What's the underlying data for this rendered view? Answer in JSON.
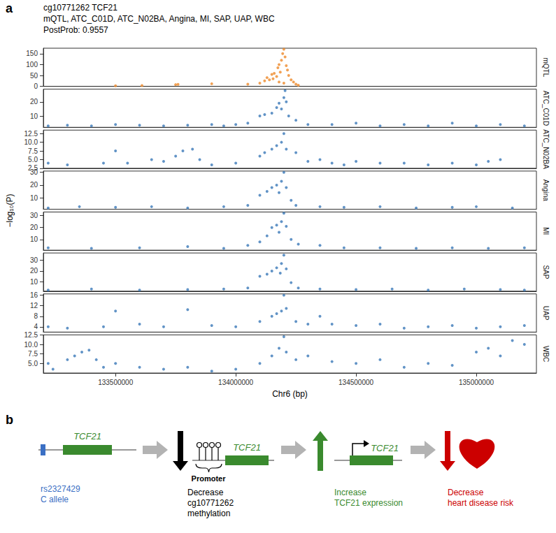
{
  "figure": {
    "panel_label": "a",
    "title": "cg10771262 TCF21",
    "subtitle": "mQTL, ATC_C01D, ATC_N02BA, Angina, MI, SAP, UAP, WBC",
    "caption": "PostProb: 0.9557",
    "y_label": "−log₁₀(P)"
  },
  "chart_data": [
    {
      "type": "scatter",
      "title": "mQTL",
      "color": "#ee8a2a",
      "grid": false,
      "tick_labels": "y",
      "xlim": [
        133200000,
        135250000
      ],
      "xticks": [
        133500000,
        134000000,
        134500000,
        135000000
      ],
      "ylim": [
        0,
        175
      ],
      "yticks": [
        0,
        50,
        100,
        150
      ],
      "x": [
        133500000,
        133610000,
        133750000,
        133760000,
        133900000,
        134050000,
        134100000,
        134120000,
        134130000,
        134140000,
        134150000,
        134155000,
        134160000,
        134170000,
        134175000,
        134180000,
        134180000,
        134185000,
        134190000,
        134195000,
        134200000,
        134200000,
        134205000,
        134210000,
        134215000,
        134220000,
        134230000,
        134240000,
        134250000,
        134260000
      ],
      "values": [
        3,
        4,
        8,
        9,
        12,
        10,
        15,
        25,
        40,
        30,
        55,
        35,
        60,
        45,
        85,
        100,
        20,
        65,
        120,
        150,
        170,
        15,
        135,
        95,
        75,
        50,
        30,
        20,
        10,
        5
      ]
    },
    {
      "type": "scatter",
      "title": "ATC_C01D",
      "color": "#3a78b8",
      "grid": false,
      "tick_labels": "y",
      "xlim": [
        133200000,
        135250000
      ],
      "xticks": [
        133500000,
        134000000,
        134500000,
        135000000
      ],
      "ylim": [
        2,
        29
      ],
      "yticks": [
        10,
        20
      ],
      "x": [
        133220000,
        133300000,
        133400000,
        133500000,
        133600000,
        133700000,
        133800000,
        133900000,
        133950000,
        134000000,
        134050000,
        134100000,
        134120000,
        134150000,
        134170000,
        134180000,
        134190000,
        134200000,
        134205000,
        134210000,
        134220000,
        134250000,
        134300000,
        134400000,
        134500000,
        134600000,
        134700000,
        134800000,
        134900000,
        135000000,
        135100000,
        135200000
      ],
      "values": [
        3,
        3.5,
        3,
        4,
        3.5,
        3,
        3.5,
        4,
        3,
        4,
        5,
        10,
        11,
        12,
        16,
        19,
        15,
        23,
        28,
        20,
        10,
        7,
        4,
        4,
        5,
        3,
        4,
        3,
        5,
        3,
        4,
        3
      ]
    },
    {
      "type": "scatter",
      "title": "ATC_N02BA",
      "color": "#3a78b8",
      "grid": false,
      "tick_labels": "y",
      "xlim": [
        133200000,
        135250000
      ],
      "xticks": [
        133500000,
        134000000,
        134500000,
        135000000
      ],
      "ylim": [
        2.5,
        13.5
      ],
      "yticks": [
        2.5,
        {
          "value": 5,
          "label": "5.0"
        },
        7.5,
        {
          "value": 10,
          "label": "10.0"
        },
        12.5
      ],
      "x": [
        133220000,
        133300000,
        133450000,
        133500000,
        133550000,
        133650000,
        133700000,
        133750000,
        133780000,
        133820000,
        133850000,
        133900000,
        134000000,
        134100000,
        134120000,
        134150000,
        134170000,
        134190000,
        134200000,
        134210000,
        134250000,
        134300000,
        134350000,
        134400000,
        134450000,
        134500000,
        134600000,
        134700000,
        134800000,
        134900000,
        135000000,
        135050000,
        135100000
      ],
      "values": [
        4,
        3.5,
        4,
        7.5,
        4,
        5,
        4.5,
        6,
        7.5,
        8,
        5,
        3.5,
        4,
        6,
        7,
        8,
        9,
        10,
        12.5,
        8,
        7,
        4.5,
        5,
        4,
        3.5,
        4.5,
        4,
        4,
        3.5,
        4,
        3.5,
        4.5,
        5
      ]
    },
    {
      "type": "scatter",
      "title": "Angina",
      "color": "#3a78b8",
      "grid": false,
      "tick_labels": "y",
      "xlim": [
        133200000,
        135250000
      ],
      "xticks": [
        133500000,
        134000000,
        134500000,
        135000000
      ],
      "ylim": [
        1,
        31
      ],
      "yticks": [
        10,
        20,
        30
      ],
      "x": [
        133220000,
        133350000,
        133500000,
        133650000,
        133800000,
        133950000,
        134050000,
        134100000,
        134130000,
        134150000,
        134170000,
        134180000,
        134190000,
        134200000,
        134210000,
        134230000,
        134250000,
        134350000,
        134450000,
        134600000,
        134750000,
        134900000,
        135000000,
        135150000
      ],
      "values": [
        2,
        3,
        2.5,
        3,
        2,
        3,
        4,
        12,
        15,
        18,
        20,
        14,
        23,
        30,
        18,
        8,
        4,
        3,
        2.5,
        3,
        2,
        2.5,
        3,
        2
      ]
    },
    {
      "type": "scatter",
      "title": "MI",
      "color": "#3a78b8",
      "grid": false,
      "tick_labels": "y",
      "xlim": [
        133200000,
        135250000
      ],
      "xticks": [
        133500000,
        134000000,
        134500000,
        135000000
      ],
      "ylim": [
        1,
        33
      ],
      "yticks": [
        10,
        20,
        30
      ],
      "x": [
        133220000,
        133400000,
        133600000,
        133800000,
        133950000,
        134050000,
        134100000,
        134130000,
        134150000,
        134170000,
        134180000,
        134190000,
        134200000,
        134210000,
        134230000,
        134260000,
        134350000,
        134450000,
        134600000,
        134750000,
        134900000,
        135050000,
        135200000
      ],
      "values": [
        3,
        2.5,
        3,
        4,
        2.5,
        5,
        8,
        13,
        20,
        22,
        16,
        25,
        32,
        21,
        10,
        6,
        5,
        3,
        3,
        2.5,
        3,
        2.5,
        3
      ]
    },
    {
      "type": "scatter",
      "title": "SAP",
      "color": "#3a78b8",
      "grid": false,
      "tick_labels": "y",
      "xlim": [
        133200000,
        135250000
      ],
      "xticks": [
        133500000,
        134000000,
        134500000,
        135000000
      ],
      "ylim": [
        1,
        37
      ],
      "yticks": [
        10,
        20,
        30
      ],
      "x": [
        133220000,
        133400000,
        133600000,
        133800000,
        133950000,
        134050000,
        134100000,
        134130000,
        134150000,
        134170000,
        134185000,
        134190000,
        134200000,
        134210000,
        134230000,
        134260000,
        134350000,
        134500000,
        134650000,
        134800000,
        134950000,
        135100000,
        135200000
      ],
      "values": [
        2,
        3,
        2,
        2.5,
        3,
        4,
        15,
        17,
        20,
        23,
        18,
        27,
        35,
        22,
        9,
        4,
        3,
        2.5,
        3,
        2,
        3,
        2.5,
        2
      ]
    },
    {
      "type": "scatter",
      "title": "UAP",
      "color": "#3a78b8",
      "grid": false,
      "tick_labels": "y",
      "xlim": [
        133200000,
        135250000
      ],
      "xticks": [
        133500000,
        134000000,
        134500000,
        135000000
      ],
      "ylim": [
        2,
        16.5
      ],
      "yticks": [
        4,
        8,
        12,
        16
      ],
      "x": [
        133220000,
        133300000,
        133450000,
        133500000,
        133600000,
        133700000,
        133800000,
        133900000,
        134000000,
        134100000,
        134150000,
        134170000,
        134190000,
        134200000,
        134210000,
        134250000,
        134300000,
        134350000,
        134400000,
        134500000,
        134600000,
        134700000,
        134800000,
        134900000,
        135000000,
        135100000,
        135200000
      ],
      "values": [
        4,
        3.5,
        4,
        10,
        5,
        4,
        10.5,
        4.5,
        4,
        6,
        8,
        9,
        10,
        16,
        11,
        6,
        5,
        8,
        5,
        4.5,
        5,
        3.5,
        4,
        4.5,
        3.5,
        4,
        4.5
      ]
    },
    {
      "type": "scatter",
      "title": "WBC",
      "color": "#3a78b8",
      "grid": false,
      "x_label": "Chr6 (bp)",
      "xlim": [
        133200000,
        135250000
      ],
      "xticks": [
        133500000,
        134000000,
        134500000,
        135000000
      ],
      "ylim": [
        2.5,
        12.5
      ],
      "yticks": [
        {
          "value": 5,
          "label": "5.0"
        },
        7.5,
        {
          "value": 10,
          "label": "10.0"
        },
        12.5
      ],
      "x": [
        133220000,
        133240000,
        133300000,
        133330000,
        133360000,
        133390000,
        133420000,
        133450000,
        133500000,
        133600000,
        133700000,
        133800000,
        133900000,
        134000000,
        134100000,
        134150000,
        134180000,
        134200000,
        134210000,
        134250000,
        134300000,
        134400000,
        134500000,
        134600000,
        134700000,
        134800000,
        134900000,
        135000000,
        135050000,
        135100000,
        135150000,
        135200000
      ],
      "values": [
        5,
        3.5,
        6,
        7,
        8,
        8.5,
        6,
        4,
        5,
        4,
        3.5,
        4,
        3,
        3.5,
        5,
        7,
        9,
        12,
        8,
        6,
        7,
        5.5,
        5,
        6,
        4,
        5,
        4.5,
        8,
        9,
        7,
        11,
        10
      ]
    }
  ],
  "diagram": {
    "panel_label": "b",
    "steps": [
      {
        "gene": "TCF21",
        "text": [
          "rs2327429",
          "C allele"
        ],
        "color": "#3b6fc4"
      },
      {
        "gene": "TCF21",
        "region": "Promoter",
        "text": [
          "Decrease",
          "cg10771262",
          "methylation"
        ],
        "color": "#000000"
      },
      {
        "gene": "TCF21",
        "text": [
          "Increase",
          "TCF21 expression"
        ],
        "color": "#3a8a2e"
      },
      {
        "text": [
          "Decrease",
          "heart disease risk"
        ],
        "color": "#cc0000"
      }
    ]
  }
}
